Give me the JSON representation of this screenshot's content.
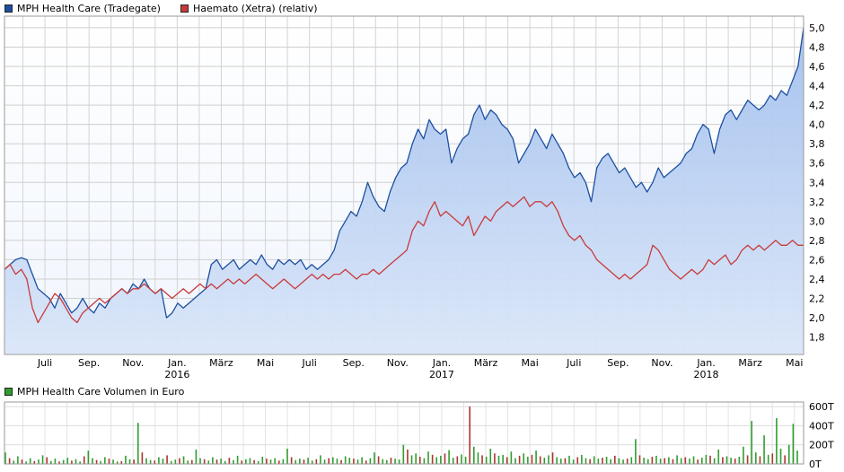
{
  "legend": {
    "price": [
      {
        "label": "MPH Health Care (Tradegate)",
        "color": "#1d4fa0"
      },
      {
        "label": "Haemato (Xetra) (relativ)",
        "color": "#c93b3b"
      }
    ],
    "volume": [
      {
        "label": "MPH Health Care Volumen in Euro",
        "color": "#2f9e2f"
      }
    ]
  },
  "chart_data": [
    {
      "type": "line",
      "title": "MPH Health Care vs Haemato price comparison 2015-2018",
      "y_min": 1.62,
      "y_max": 5.12,
      "y_ticks": [
        "1,8",
        "2,0",
        "2,2",
        "2,4",
        "2,6",
        "2,8",
        "3,0",
        "3,2",
        "3,4",
        "3,6",
        "3,8",
        "4,0",
        "4,2",
        "4,4",
        "4,6",
        "4,8",
        "5,0"
      ],
      "x_ticks": [
        "Juli",
        "Sep.",
        "Nov.",
        "Jan.",
        "März",
        "Mai",
        "Juli",
        "Sep.",
        "Nov.",
        "Jan.",
        "März",
        "Mai",
        "Juli",
        "Sep.",
        "Nov.",
        "Jan.",
        "März",
        "Mai"
      ],
      "years": [
        {
          "label": "2016",
          "tick": 3
        },
        {
          "label": "2017",
          "tick": 9
        },
        {
          "label": "2018",
          "tick": 15
        }
      ],
      "grid": true,
      "legend_position": "top-left",
      "series": [
        {
          "name": "MPH Health Care (Tradegate)",
          "color": "#1d4fa0",
          "fill": true,
          "values": [
            2.5,
            2.55,
            2.6,
            2.62,
            2.6,
            2.45,
            2.3,
            2.25,
            2.2,
            2.1,
            2.25,
            2.15,
            2.05,
            2.1,
            2.2,
            2.1,
            2.05,
            2.15,
            2.1,
            2.2,
            2.25,
            2.3,
            2.25,
            2.35,
            2.3,
            2.4,
            2.3,
            2.25,
            2.3,
            2.0,
            2.05,
            2.15,
            2.1,
            2.15,
            2.2,
            2.25,
            2.3,
            2.55,
            2.6,
            2.5,
            2.55,
            2.6,
            2.5,
            2.55,
            2.6,
            2.55,
            2.65,
            2.55,
            2.5,
            2.6,
            2.55,
            2.6,
            2.55,
            2.6,
            2.5,
            2.55,
            2.5,
            2.55,
            2.6,
            2.7,
            2.9,
            3.0,
            3.1,
            3.05,
            3.2,
            3.4,
            3.25,
            3.15,
            3.1,
            3.3,
            3.45,
            3.55,
            3.6,
            3.8,
            3.95,
            3.85,
            4.05,
            3.95,
            3.9,
            3.95,
            3.6,
            3.75,
            3.85,
            3.9,
            4.1,
            4.2,
            4.05,
            4.15,
            4.1,
            4.0,
            3.95,
            3.85,
            3.6,
            3.7,
            3.8,
            3.95,
            3.85,
            3.75,
            3.9,
            3.8,
            3.7,
            3.55,
            3.45,
            3.5,
            3.4,
            3.2,
            3.55,
            3.65,
            3.7,
            3.6,
            3.5,
            3.55,
            3.45,
            3.35,
            3.4,
            3.3,
            3.4,
            3.55,
            3.45,
            3.5,
            3.55,
            3.6,
            3.7,
            3.75,
            3.9,
            4.0,
            3.95,
            3.7,
            3.95,
            4.1,
            4.15,
            4.05,
            4.15,
            4.25,
            4.2,
            4.15,
            4.2,
            4.3,
            4.25,
            4.35,
            4.3,
            4.45,
            4.6,
            5.0
          ]
        },
        {
          "name": "Haemato (Xetra) (relativ)",
          "color": "#c93b3b",
          "fill": false,
          "values": [
            2.5,
            2.55,
            2.45,
            2.5,
            2.4,
            2.1,
            1.95,
            2.05,
            2.15,
            2.25,
            2.2,
            2.1,
            2.0,
            1.95,
            2.05,
            2.1,
            2.15,
            2.2,
            2.15,
            2.2,
            2.25,
            2.3,
            2.25,
            2.3,
            2.3,
            2.35,
            2.3,
            2.25,
            2.3,
            2.25,
            2.2,
            2.25,
            2.3,
            2.25,
            2.3,
            2.35,
            2.3,
            2.35,
            2.3,
            2.35,
            2.4,
            2.35,
            2.4,
            2.35,
            2.4,
            2.45,
            2.4,
            2.35,
            2.3,
            2.35,
            2.4,
            2.35,
            2.3,
            2.35,
            2.4,
            2.45,
            2.4,
            2.45,
            2.4,
            2.45,
            2.45,
            2.5,
            2.45,
            2.4,
            2.45,
            2.45,
            2.5,
            2.45,
            2.5,
            2.55,
            2.6,
            2.65,
            2.7,
            2.9,
            3.0,
            2.95,
            3.1,
            3.2,
            3.05,
            3.1,
            3.05,
            3.0,
            2.95,
            3.05,
            2.85,
            2.95,
            3.05,
            3.0,
            3.1,
            3.15,
            3.2,
            3.15,
            3.2,
            3.25,
            3.15,
            3.2,
            3.2,
            3.15,
            3.2,
            3.1,
            2.95,
            2.85,
            2.8,
            2.85,
            2.75,
            2.7,
            2.6,
            2.55,
            2.5,
            2.45,
            2.4,
            2.45,
            2.4,
            2.45,
            2.5,
            2.55,
            2.75,
            2.7,
            2.6,
            2.5,
            2.45,
            2.4,
            2.45,
            2.5,
            2.45,
            2.5,
            2.6,
            2.55,
            2.6,
            2.65,
            2.55,
            2.6,
            2.7,
            2.75,
            2.7,
            2.75,
            2.7,
            2.75,
            2.8,
            2.75,
            2.75,
            2.8,
            2.75,
            2.75
          ]
        }
      ]
    },
    {
      "type": "bar",
      "title": "MPH Health Care Volumen in Euro",
      "unit": "T",
      "y_ticks": [
        "600T",
        "400T",
        "200T",
        "0T"
      ],
      "y_max": 650,
      "up_color": "#2f9e2f",
      "down_color": "#b03232",
      "values": [
        120,
        -60,
        35,
        80,
        -45,
        25,
        60,
        -30,
        45,
        90,
        -70,
        30,
        55,
        -25,
        40,
        65,
        -35,
        50,
        25,
        -80,
        140,
        60,
        -40,
        30,
        70,
        -55,
        45,
        25,
        -30,
        85,
        50,
        -45,
        430,
        -120,
        60,
        40,
        -35,
        70,
        55,
        -90,
        30,
        45,
        -60,
        80,
        35,
        -40,
        150,
        60,
        -50,
        35,
        70,
        -45,
        55,
        30,
        -65,
        40,
        85,
        -35,
        50,
        60,
        -40,
        30,
        75,
        -55,
        45,
        60,
        -35,
        50,
        160,
        -70,
        40,
        55,
        -45,
        65,
        35,
        -50,
        90,
        45,
        -60,
        70,
        55,
        -40,
        80,
        65,
        -55,
        45,
        70,
        -35,
        60,
        120,
        -80,
        50,
        40,
        -65,
        55,
        45,
        200,
        -150,
        90,
        110,
        -75,
        60,
        130,
        -95,
        70,
        85,
        -110,
        145,
        65,
        -80,
        100,
        75,
        -600,
        180,
        120,
        -90,
        75,
        160,
        -110,
        85,
        95,
        -70,
        130,
        60,
        -85,
        110,
        75,
        -95,
        140,
        -80,
        65,
        90,
        -120,
        70,
        55,
        -60,
        85,
        45,
        -70,
        95,
        60,
        -50,
        80,
        55,
        -65,
        75,
        50,
        -85,
        60,
        45,
        -55,
        70,
        260,
        -90,
        65,
        50,
        -75,
        85,
        55,
        -60,
        70,
        -50,
        90,
        60,
        -70,
        55,
        80,
        -45,
        65,
        95,
        -85,
        60,
        150,
        -70,
        80,
        65,
        -55,
        75,
        180,
        -90,
        450,
        120,
        -80,
        300,
        95,
        -110,
        480,
        160,
        -90,
        200,
        420,
        140
      ]
    }
  ]
}
